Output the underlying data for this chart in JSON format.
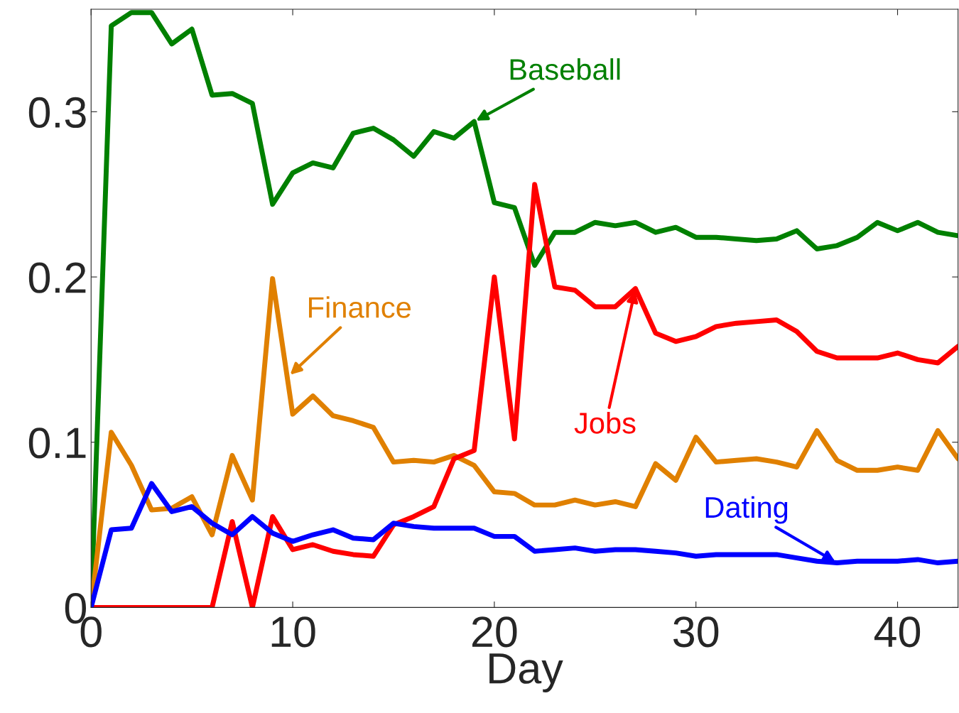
{
  "chart_data": {
    "type": "line",
    "xlabel": "Day",
    "xlim": [
      0,
      43
    ],
    "ylim": [
      0,
      0.362
    ],
    "xticks": [
      0,
      10,
      20,
      30,
      40
    ],
    "yticks": [
      0,
      0.1,
      0.2,
      0.3
    ],
    "grid": false,
    "legend": false,
    "marker": "none",
    "line_style": "solid",
    "x": [
      0,
      1,
      2,
      3,
      4,
      5,
      6,
      7,
      8,
      9,
      10,
      11,
      12,
      13,
      14,
      15,
      16,
      17,
      18,
      19,
      20,
      21,
      22,
      23,
      24,
      25,
      26,
      27,
      28,
      29,
      30,
      31,
      32,
      33,
      34,
      35,
      36,
      37,
      38,
      39,
      40,
      41,
      42,
      43
    ],
    "series": [
      {
        "color": "#008000",
        "values": [
          0,
          0.352,
          0.36,
          0.36,
          0.341,
          0.35,
          0.31,
          0.311,
          0.305,
          0.244,
          0.263,
          0.269,
          0.266,
          0.287,
          0.29,
          0.283,
          0.273,
          0.288,
          0.284,
          0.294,
          0.245,
          0.242,
          0.207,
          0.227,
          0.227,
          0.233,
          0.231,
          0.233,
          0.227,
          0.23,
          0.224,
          0.224,
          0.223,
          0.222,
          0.223,
          0.228,
          0.217,
          0.219,
          0.224,
          0.233,
          0.228,
          0.233,
          0.227,
          0.225
        ]
      },
      {
        "color": "#e08000",
        "values": [
          0,
          0.106,
          0.086,
          0.059,
          0.06,
          0.067,
          0.044,
          0.092,
          0.065,
          0.199,
          0.117,
          0.128,
          0.116,
          0.113,
          0.109,
          0.088,
          0.089,
          0.088,
          0.092,
          0.086,
          0.07,
          0.069,
          0.062,
          0.062,
          0.065,
          0.062,
          0.064,
          0.061,
          0.087,
          0.077,
          0.103,
          0.088,
          0.089,
          0.09,
          0.088,
          0.085,
          0.107,
          0.089,
          0.083,
          0.083,
          0.085,
          0.083,
          0.107,
          0.09
        ]
      },
      {
        "color": "#ff0000",
        "values": [
          0,
          0,
          0,
          0,
          0,
          0,
          0,
          0.052,
          0,
          0.055,
          0.035,
          0.038,
          0.034,
          0.032,
          0.031,
          0.05,
          0.055,
          0.061,
          0.09,
          0.095,
          0.2,
          0.102,
          0.256,
          0.194,
          0.192,
          0.182,
          0.182,
          0.193,
          0.166,
          0.161,
          0.164,
          0.17,
          0.172,
          0.173,
          0.174,
          0.167,
          0.155,
          0.151,
          0.151,
          0.151,
          0.154,
          0.15,
          0.148,
          0.158
        ]
      },
      {
        "color": "#0000ff",
        "values": [
          0,
          0.047,
          0.048,
          0.075,
          0.058,
          0.061,
          0.051,
          0.044,
          0.055,
          0.045,
          0.04,
          0.044,
          0.047,
          0.042,
          0.041,
          0.051,
          0.049,
          0.048,
          0.048,
          0.048,
          0.043,
          0.043,
          0.034,
          0.035,
          0.036,
          0.034,
          0.035,
          0.035,
          0.034,
          0.033,
          0.031,
          0.032,
          0.032,
          0.032,
          0.032,
          0.03,
          0.028,
          0.027,
          0.028,
          0.028,
          0.028,
          0.029,
          0.027,
          0.028
        ]
      }
    ],
    "annotations": [
      {
        "text": "Baseball",
        "x": 19,
        "y": 0.294
      },
      {
        "text": "Finance",
        "x": 9.8,
        "y": 0.14
      },
      {
        "text": "Jobs",
        "x": 27,
        "y": 0.193
      },
      {
        "text": "Dating",
        "x": 37,
        "y": 0.027
      }
    ]
  }
}
